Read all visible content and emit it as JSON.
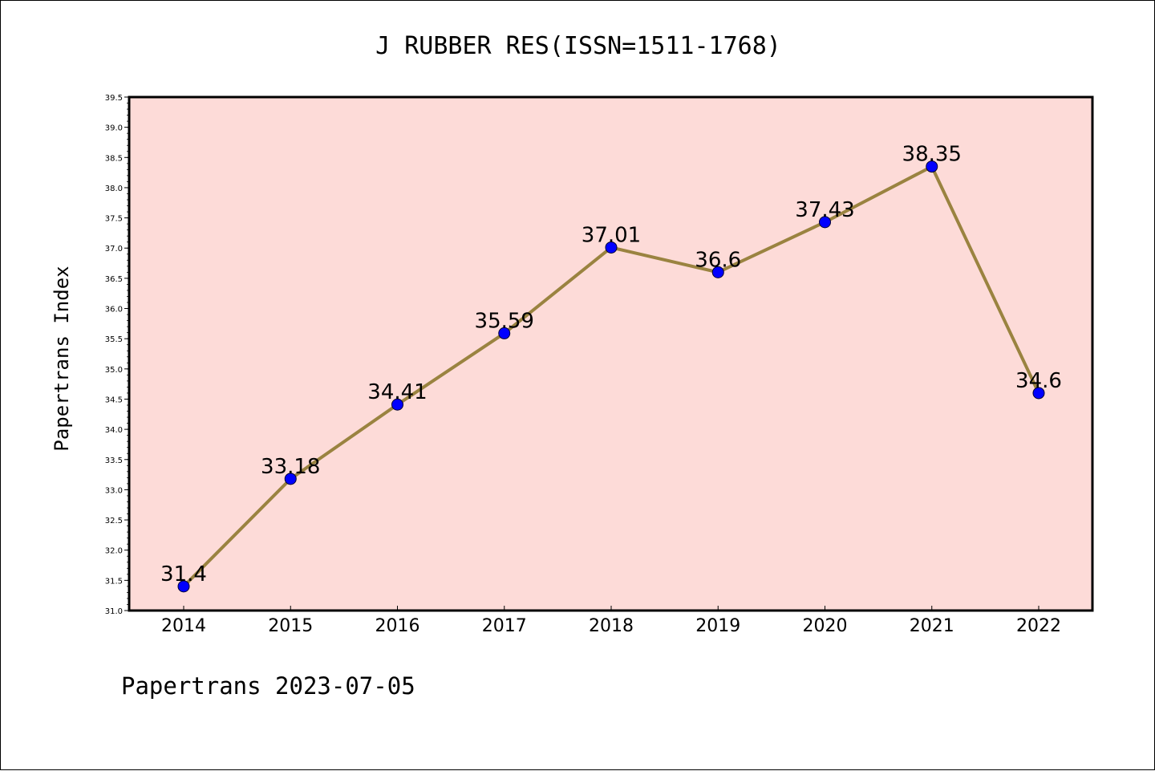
{
  "chart_data": {
    "type": "line",
    "title": "J RUBBER RES(ISSN=1511-1768)",
    "xlabel": "",
    "ylabel": "Papertrans Index",
    "footer": "Papertrans 2023-07-05",
    "categories": [
      "2014",
      "2015",
      "2016",
      "2017",
      "2018",
      "2019",
      "2020",
      "2021",
      "2022"
    ],
    "series": [
      {
        "values": [
          31.4,
          33.18,
          34.41,
          35.59,
          37.01,
          36.6,
          37.43,
          38.35,
          34.6
        ],
        "labels": [
          "31.4",
          "33.18",
          "34.41",
          "35.59",
          "37.01",
          "36.6",
          "37.43",
          "38.35",
          "34.6"
        ],
        "line_color": "#9a8340",
        "marker_color": "#0000ff"
      }
    ],
    "ylim": [
      31.0,
      39.5
    ],
    "yticks": [
      "31.0",
      "31.5",
      "32.0",
      "32.5",
      "33.0",
      "33.5",
      "34.0",
      "34.5",
      "35.0",
      "35.5",
      "36.0",
      "36.5",
      "37.0",
      "37.5",
      "38.0",
      "38.5",
      "39.0",
      "39.5"
    ],
    "grid": false,
    "plot_background": "#fddbd8"
  }
}
